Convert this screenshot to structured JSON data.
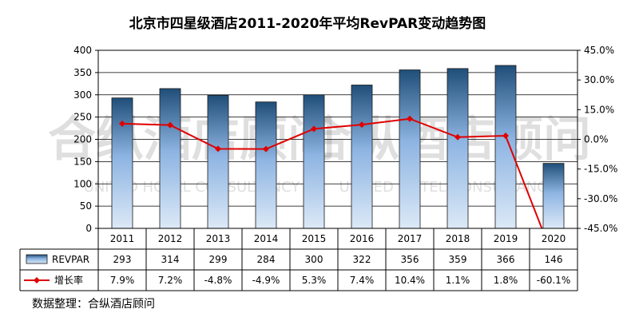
{
  "chart_data": {
    "type": "bar",
    "title": "北京市四星级酒店2011-2020年平均RevPAR变动趋势图",
    "categories": [
      "2011",
      "2012",
      "2013",
      "2014",
      "2015",
      "2016",
      "2017",
      "2018",
      "2019",
      "2020"
    ],
    "series": [
      {
        "name": "REVPAR",
        "type": "bar",
        "axis": "left",
        "values": [
          293,
          314,
          299,
          284,
          300,
          322,
          356,
          359,
          366,
          146
        ],
        "labels": [
          "293",
          "314",
          "299",
          "284",
          "300",
          "322",
          "356",
          "359",
          "366",
          "146"
        ]
      },
      {
        "name": "增长率",
        "type": "line",
        "axis": "right",
        "values": [
          7.9,
          7.2,
          -4.8,
          -4.9,
          5.3,
          7.4,
          10.4,
          1.1,
          1.8,
          -60.1
        ],
        "labels": [
          "7.9%",
          "7.2%",
          "-4.8%",
          "-4.9%",
          "5.3%",
          "7.4%",
          "10.4%",
          "1.1%",
          "1.8%",
          "-60.1%"
        ]
      }
    ],
    "y_left": {
      "min": 0,
      "max": 400,
      "ticks": [
        "0",
        "50",
        "100",
        "150",
        "200",
        "250",
        "300",
        "350",
        "400"
      ]
    },
    "y_right": {
      "min": -45,
      "max": 45,
      "ticks": [
        "-45.0%",
        "-30.0%",
        "-15.0%",
        "0.0%",
        "15.0%",
        "30.0%",
        "45.0%"
      ]
    },
    "grid": "horizontal",
    "legend": "data-table",
    "colors": {
      "bar_top": "#1f4e79",
      "bar_mid": "#8db4e2",
      "bar_bottom": "#dce9f7",
      "line": "#e00000"
    }
  },
  "watermark": {
    "text": "合纵酒店顾问",
    "sub": "UNITED HOTEL CONSULTANCY"
  },
  "source": "数据整理：合纵酒店顾问"
}
